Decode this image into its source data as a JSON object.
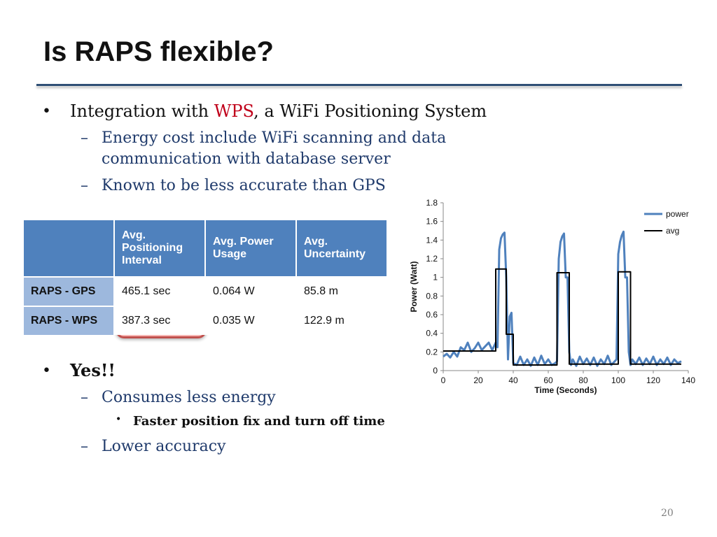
{
  "slide": {
    "title": "Is RAPS flexible?",
    "page_number": "20"
  },
  "bullets": {
    "b1_prefix": "Integration with ",
    "b1_highlight": "WPS",
    "b1_suffix": ", a WiFi Positioning System",
    "b1_sub1_line1": "Energy cost include WiFi scanning and data",
    "b1_sub1_line2": "communication with database server",
    "b1_sub2": "Known to be less accurate than GPS",
    "b2": "Yes!!",
    "b2_sub1": "Consumes less energy",
    "b2_sub1_sub": "Faster position fix and turn off time",
    "b2_sub2": "Lower accuracy",
    "bullet_char": "•",
    "dash_char": "–"
  },
  "table": {
    "headers": [
      "",
      "Avg. Positioning Interval",
      "Avg. Power Usage",
      "Avg. Uncertainty"
    ],
    "rows": [
      [
        "RAPS - GPS",
        "465.1 sec",
        "0.064 W",
        "85.8 m"
      ],
      [
        "RAPS - WPS",
        "387.3 sec",
        "0.035 W",
        "122.9 m"
      ]
    ]
  },
  "chart_data": {
    "type": "line",
    "xlabel": "Time (Seconds)",
    "ylabel": "Power (Watt)",
    "xlim": [
      0,
      140
    ],
    "ylim": [
      0,
      1.8
    ],
    "xticks": [
      "0",
      "20",
      "40",
      "60",
      "80",
      "100",
      "120",
      "140"
    ],
    "yticks": [
      "0",
      "0.2",
      "0.4",
      "0.6",
      "0.8",
      "1",
      "1.2",
      "1.4",
      "1.6",
      "1.8"
    ],
    "legend_position": "top-right",
    "grid": false,
    "series": [
      {
        "name": "power",
        "color": "#4f81bd",
        "x": [
          0,
          2,
          4,
          6,
          8,
          10,
          12,
          14,
          16,
          18,
          20,
          22,
          24,
          26,
          28,
          30,
          31,
          32,
          33,
          34,
          35,
          36,
          37,
          38,
          39,
          40,
          42,
          44,
          46,
          48,
          50,
          52,
          54,
          56,
          58,
          60,
          62,
          64,
          65,
          66,
          67,
          68,
          69,
          70,
          71,
          72,
          73,
          74,
          76,
          78,
          80,
          82,
          84,
          86,
          88,
          90,
          92,
          94,
          96,
          98,
          99,
          100,
          101,
          102,
          103,
          104,
          105,
          106,
          107,
          108,
          110,
          112,
          114,
          116,
          118,
          120,
          122,
          124,
          126,
          128,
          130,
          132,
          134,
          136
        ],
        "y": [
          0.15,
          0.18,
          0.14,
          0.2,
          0.15,
          0.25,
          0.22,
          0.3,
          0.2,
          0.24,
          0.3,
          0.22,
          0.26,
          0.3,
          0.22,
          0.3,
          0.25,
          1.3,
          1.42,
          1.46,
          1.48,
          1.0,
          0.12,
          0.58,
          0.62,
          0.08,
          0.06,
          0.15,
          0.06,
          0.12,
          0.05,
          0.14,
          0.06,
          0.16,
          0.07,
          0.12,
          0.06,
          0.08,
          0.1,
          1.2,
          1.38,
          1.44,
          1.47,
          1.0,
          1.0,
          0.2,
          0.06,
          0.12,
          0.05,
          0.15,
          0.07,
          0.13,
          0.06,
          0.14,
          0.05,
          0.12,
          0.07,
          0.16,
          0.06,
          0.1,
          0.12,
          1.25,
          1.38,
          1.45,
          1.49,
          1.0,
          1.0,
          0.2,
          0.06,
          0.12,
          0.07,
          0.14,
          0.06,
          0.13,
          0.07,
          0.15,
          0.06,
          0.12,
          0.07,
          0.14,
          0.06,
          0.12,
          0.08,
          0.1
        ]
      },
      {
        "name": "avg",
        "color": "#000000",
        "x": [
          0,
          30,
          30,
          36,
          36,
          40,
          40,
          65,
          65,
          72,
          72,
          100,
          100,
          107,
          107,
          136
        ],
        "y": [
          0.21,
          0.21,
          1.09,
          1.09,
          0.39,
          0.39,
          0.06,
          0.06,
          1.05,
          1.05,
          0.07,
          0.07,
          1.06,
          1.06,
          0.07,
          0.07
        ]
      }
    ]
  }
}
